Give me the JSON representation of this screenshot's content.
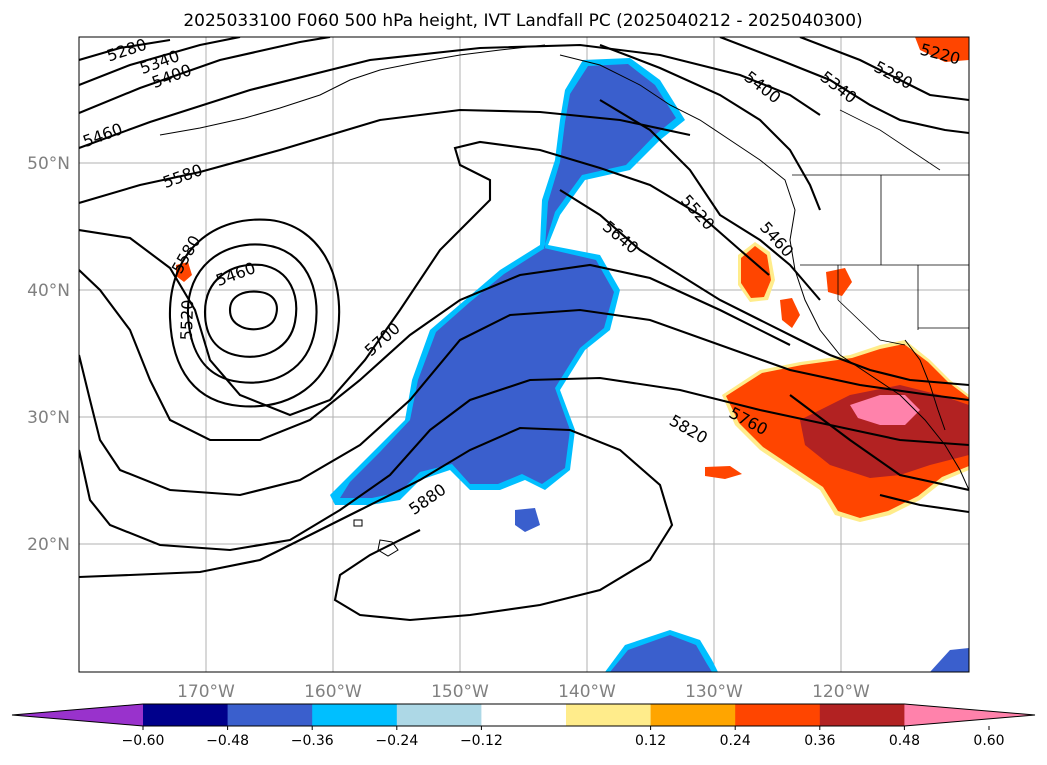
{
  "title": "2025033100 F060 500 hPa height, IVT Landfall PC (2025040212 - 2025040300)",
  "map": {
    "lon_range": [
      -180,
      -110
    ],
    "lat_range": [
      10,
      60
    ],
    "lat_ticks": [
      "50°N",
      "40°N",
      "30°N",
      "20°N"
    ],
    "lon_ticks": [
      "170°W",
      "160°W",
      "150°W",
      "140°W",
      "130°W",
      "120°W"
    ],
    "contour_labels": [
      "5280",
      "5340",
      "5400",
      "5460",
      "5580",
      "5580",
      "5520",
      "5460",
      "5700",
      "5640",
      "5520",
      "5460",
      "5400",
      "5340",
      "5280",
      "5220",
      "5760",
      "5820",
      "5880"
    ],
    "fill_colors": {
      "neg_strong": "#3a5fcd",
      "neg_mid": "#00bfff",
      "neg_weak": "#add8e6",
      "pos_weak": "#ffec8b",
      "pos_low": "#ffa500",
      "pos_mid": "#ff4500",
      "pos_high": "#b22222",
      "pos_max": "#ff82ab"
    }
  },
  "colorbar": {
    "colors": [
      "#9932cc",
      "#00008b",
      "#3a5fcd",
      "#00bfff",
      "#add8e6",
      "#ffffff",
      "#ffec8b",
      "#ffa500",
      "#ff4500",
      "#b22222",
      "#ff82ab"
    ],
    "tick_labels": [
      "−0.60",
      "−0.48",
      "−0.36",
      "−0.24",
      "−0.12",
      "0.12",
      "0.24",
      "0.36",
      "0.48",
      "0.60"
    ]
  }
}
